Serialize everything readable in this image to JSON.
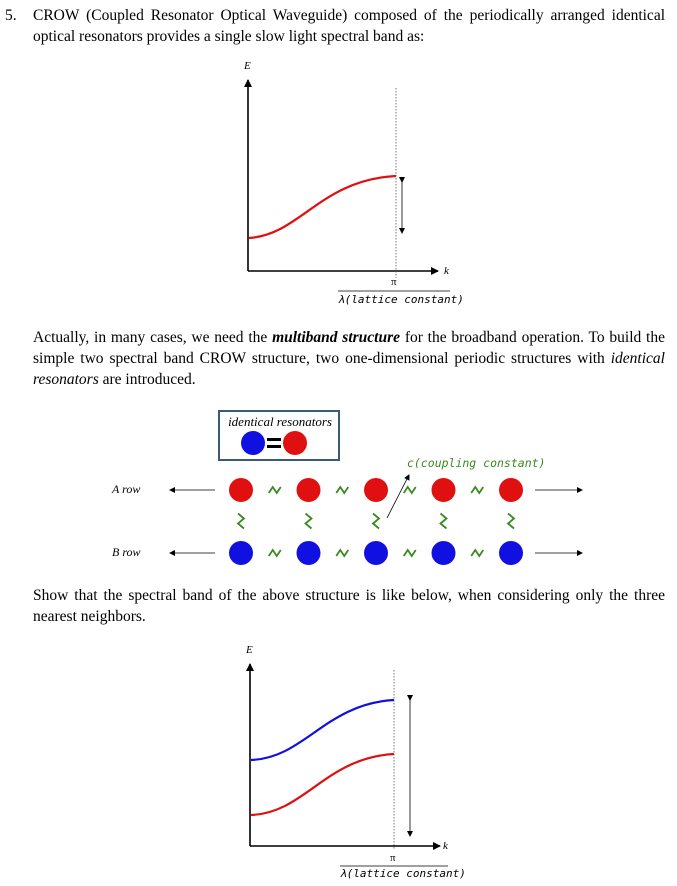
{
  "problem": {
    "number": "5.",
    "intro_text": "CROW (Coupled Resonator Optical Waveguide) composed of the periodically arranged identical optical resonators provides a single slow light spectral band as:",
    "para2_before": "Actually, in many cases, we need the ",
    "para2_bold": "multiband structure",
    "para2_middle": " for the broadband operation. To build the simple two spectral band CROW structure, two one-dimensional periodic structures with ",
    "para2_italic": "identical resonators",
    "para2_after": " are introduced.",
    "question_text": "Show that the spectral band of the above structure is like below, when considering only the three nearest neighbors."
  },
  "figure1": {
    "y_axis_label": "E",
    "x_axis_label": "k",
    "pi_label": "π",
    "lattice_label": "λ(lattice constant)",
    "band_color": "#e01010"
  },
  "diagram": {
    "legend_title": "identical resonators",
    "coupling_label": "c(coupling constant)",
    "row_a_label": "A row",
    "row_b_label": "B row",
    "resonators_per_row": 5,
    "row_a_color": "#e01010",
    "row_b_color": "#1010e0",
    "coupling_color": "#3a8a20"
  },
  "figure2": {
    "y_axis_label": "E",
    "x_axis_label": "k",
    "pi_label": "π",
    "lattice_label": "λ(lattice constant)",
    "upper_band_color": "#1010e0",
    "lower_band_color": "#e01010"
  }
}
